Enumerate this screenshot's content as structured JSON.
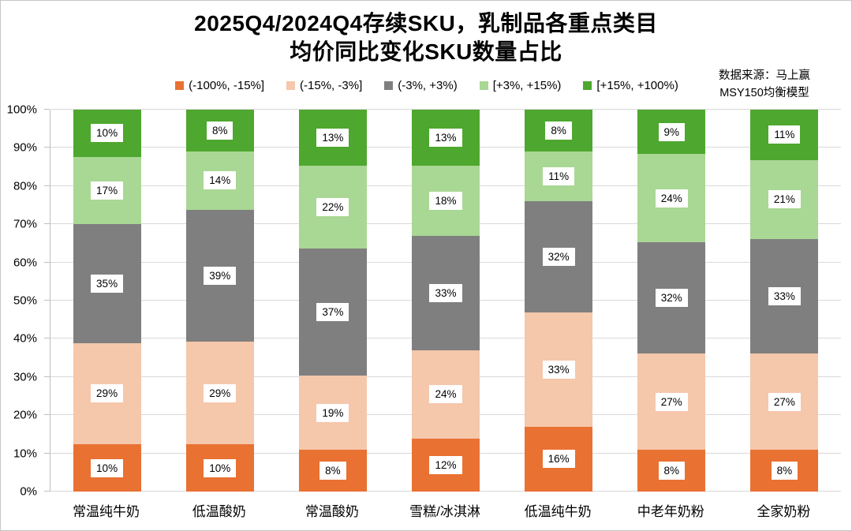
{
  "title": {
    "line1": "2025Q4/2024Q4存续SKU，乳制品各重点类目",
    "line2": "均价同比变化SKU数量占比"
  },
  "source_note": {
    "line1": "数据来源：马上赢",
    "line2": "MSY150均衡模型"
  },
  "y_axis": {
    "tick_labels": [
      "100%",
      "90%",
      "80%",
      "70%",
      "60%",
      "50%",
      "40%",
      "30%",
      "20%",
      "10%",
      "0%"
    ]
  },
  "chart_data": {
    "type": "bar",
    "stacking": "percent",
    "title": "2025Q4/2024Q4存续SKU，乳制品各重点类目均价同比变化SKU数量占比",
    "categories": [
      "常温纯牛奶",
      "低温酸奶",
      "常温酸奶",
      "雪糕/冰淇淋",
      "低温纯牛奶",
      "中老年奶粉",
      "全家奶粉"
    ],
    "series": [
      {
        "name": "(-100%, -15%]",
        "color": "#E97132",
        "values": [
          10,
          10,
          8,
          12,
          16,
          8,
          8
        ]
      },
      {
        "name": "(-15%, -3%]",
        "color": "#F5C7AB",
        "values": [
          29,
          29,
          19,
          24,
          33,
          27,
          27
        ]
      },
      {
        "name": "(-3%, +3%)",
        "color": "#7F7F7F",
        "values": [
          35,
          39,
          37,
          33,
          32,
          32,
          33
        ]
      },
      {
        "name": "[+3%, +15%)",
        "color": "#A9D794",
        "values": [
          17,
          14,
          22,
          18,
          11,
          24,
          21
        ]
      },
      {
        "name": "[+15%, +100%)",
        "color": "#4EA72E",
        "values": [
          10,
          8,
          13,
          13,
          8,
          9,
          11
        ]
      }
    ],
    "value_suffix": "%",
    "ylim": [
      0,
      100
    ],
    "grid": true,
    "legend_position": "top",
    "data_labels": "white boxes, black text, centered in each segment"
  },
  "colors": {
    "gridline": "#D9D9D9",
    "axis": "#BFBFBF",
    "label_bg": "#FFFFFF",
    "text": "#000000"
  }
}
